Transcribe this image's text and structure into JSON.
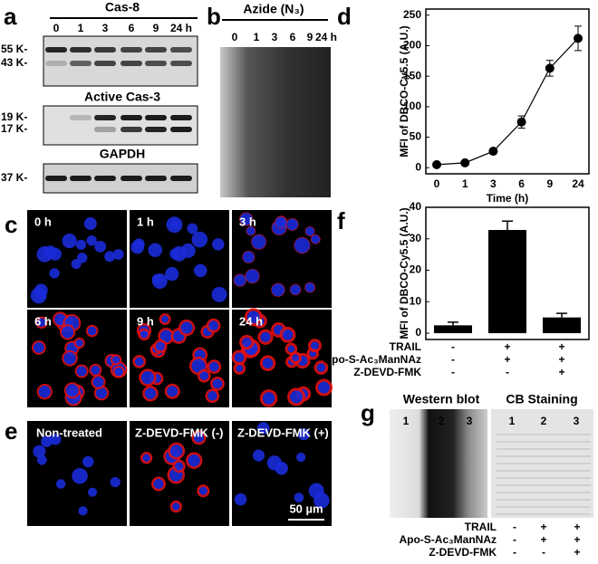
{
  "panels": {
    "a": {
      "label": "a",
      "title": "Cas-8",
      "lanes": [
        "0",
        "1",
        "3",
        "6",
        "9",
        "24 h"
      ],
      "markers": [
        "55 K-",
        "43 K-",
        "19 K-",
        "17 K-",
        "37 K-"
      ],
      "subtitles": [
        "Active Cas-3",
        "GAPDH"
      ]
    },
    "b": {
      "label": "b",
      "title": "Azide (N₃)",
      "lanes": [
        "0",
        "1",
        "3",
        "6",
        "9",
        "24 h"
      ]
    },
    "c": {
      "label": "c",
      "images": [
        "0 h",
        "1 h",
        "3 h",
        "6 h",
        "9 h",
        "24 h"
      ]
    },
    "e": {
      "label": "e",
      "images": [
        "Non-treated",
        "Z-DEVD-FMK (-)",
        "Z-DEVD-FMK (+)"
      ],
      "scale_bar": "50 µm"
    },
    "g": {
      "label": "g",
      "headers": [
        "Western blot",
        "CB Staining"
      ],
      "lanes": [
        "1",
        "2",
        "3",
        "1",
        "2",
        "3"
      ],
      "conditions": [
        {
          "name": "TRAIL",
          "marks": [
            "-",
            "+",
            "+"
          ]
        },
        {
          "name": "Apo-S-Ac₃ManNAz",
          "marks": [
            "-",
            "+",
            "+"
          ]
        },
        {
          "name": "Z-DEVD-FMK",
          "marks": [
            "-",
            "-",
            "+"
          ]
        }
      ]
    }
  },
  "chart_data": [
    {
      "type": "line",
      "label": "d",
      "ylabel": "MFI of DBCO-Cy5.5 (A.U.)",
      "xlabel": "Time (h)",
      "categories": [
        "0",
        "1",
        "3",
        "6",
        "9",
        "24"
      ],
      "values": [
        5,
        8,
        27,
        75,
        163,
        212
      ],
      "errors": [
        3,
        3,
        3,
        10,
        13,
        20
      ],
      "color": "#000000",
      "ylim": [
        -10,
        260
      ],
      "yticks": [
        0,
        50,
        100,
        150,
        200,
        250
      ]
    },
    {
      "type": "bar",
      "label": "f",
      "ylabel": "MFI of DBCO-Cy5.5 (A.U.)",
      "values": [
        2.5,
        32.8,
        5
      ],
      "errors": [
        1,
        2.8,
        1.3
      ],
      "color": "#000000",
      "ylim": [
        -2,
        40
      ],
      "yticks": [
        0,
        10,
        20,
        30,
        40
      ],
      "conditions": [
        {
          "name": "TRAIL",
          "marks": [
            "-",
            "+",
            "+"
          ]
        },
        {
          "name": "Apo-S-Ac₃ManNAz",
          "marks": [
            "-",
            "+",
            "+"
          ]
        },
        {
          "name": "Z-DEVD-FMK",
          "marks": [
            "-",
            "-",
            "+"
          ]
        }
      ]
    }
  ]
}
